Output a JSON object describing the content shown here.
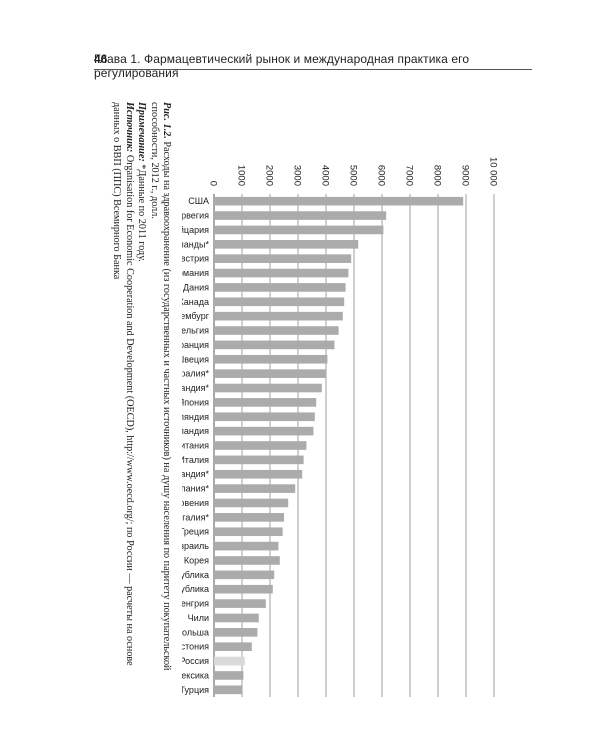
{
  "header": {
    "page_number": "46",
    "chapter_title": "Глава 1. Фармацевтический рынок и международная практика его регулирования"
  },
  "figure": {
    "caption_label": "Рис. 1.2.",
    "caption_text": "Расходы на здравоохранение (из государственных и частных источников) на душу населения по паритету покупательской способности, 2012 г., долл.",
    "note_label": "Примечание:",
    "note_text": "*Данные по 2011 году.",
    "source_label": "Источник:",
    "source_text": "Organisation for Economic Cooperation and Development (OECD), http://www.oecd.org/; по России — расчеты на основе данных о ВВП (ППС) Всемирного Банка"
  },
  "colors": {
    "bar": "#ababab",
    "bar_highlight": "#d9d9d9",
    "grid": "#8a8a8a",
    "text": "#222222"
  },
  "chart_data": {
    "type": "bar",
    "orientation": "horizontal",
    "categories": [
      "Турция",
      "Мексика",
      "Россия",
      "Эстония",
      "Польша",
      "Чили",
      "Венгрия",
      "Чешская Республика",
      "Словацкая Республика",
      "Корея",
      "Израиль",
      "Греция",
      "Португалия*",
      "Словения",
      "Испания*",
      "Новая Зеландия*",
      "Италия",
      "Великобритания",
      "Исландия",
      "Финляндия",
      "Япония",
      "Ирландия*",
      "Австралия*",
      "Швеция",
      "Франция",
      "Бельгия",
      "Люксембург",
      "Канада",
      "Дания",
      "Германия",
      "Австрия",
      "Нидерланды*",
      "Швейцария",
      "Норвегия",
      "США"
    ],
    "values": [
      1000,
      1050,
      1100,
      1350,
      1550,
      1600,
      1850,
      2100,
      2150,
      2350,
      2300,
      2450,
      2500,
      2650,
      2900,
      3150,
      3200,
      3300,
      3550,
      3600,
      3650,
      3850,
      4000,
      4050,
      4300,
      4450,
      4600,
      4650,
      4700,
      4800,
      4900,
      5150,
      6050,
      6150,
      8900
    ],
    "highlight": "Россия",
    "x_ticks": [
      "0",
      "1000",
      "2000",
      "3000",
      "4000",
      "5000",
      "6000",
      "7000",
      "8000",
      "9000",
      "10 000"
    ],
    "xlim": [
      0,
      10000
    ],
    "grid": true,
    "legend": "none"
  }
}
